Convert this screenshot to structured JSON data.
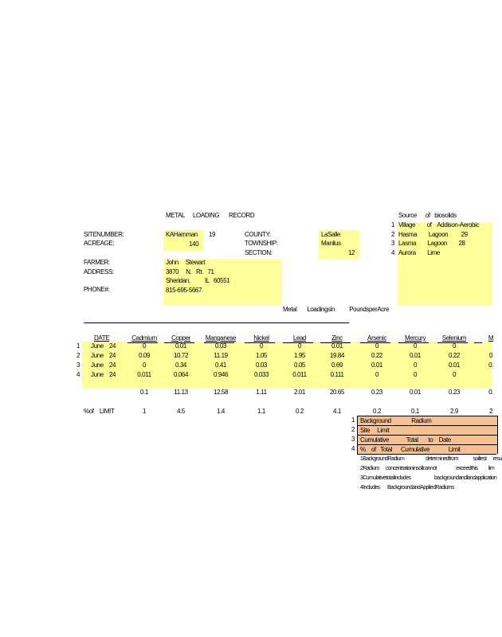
{
  "title": [
    "METAL",
    "LOADING",
    "RECORD"
  ],
  "site": {
    "labels": {
      "sitenumber": "SITENUMBER:",
      "acreage": "ACREAGE:",
      "county": "COUNTY:",
      "township": "TOWNSHIP:",
      "section": "SECTION:",
      "farmer": "FARMER:",
      "address": "ADDRESS:",
      "phone": "PHONE#:"
    },
    "site_name": "KAHamman",
    "site_number": "19",
    "acreage": "140",
    "county": "LaSalle",
    "township": "Manlius",
    "section": "12",
    "farmer": "John     Stewart",
    "address1": "3870     N.   Rt.   71",
    "address2": "Sheridan,          IL   60551",
    "phone": "815-695-5667"
  },
  "sources": {
    "title": "Source      of   biosolids",
    "items": [
      {
        "n": "1",
        "text": "Village        of    Addison-Aerobic"
      },
      {
        "n": "2",
        "text": "Hasma        Lagoon         29"
      },
      {
        "n": "3",
        "text": "Lasma        Lagoon        28"
      },
      {
        "n": "4",
        "text": "Aurora        Lime"
      }
    ]
  },
  "units_caption": "Metal       Loadingsin          PoundsperAcre",
  "table": {
    "date_header": "DATE",
    "columns": [
      "Cadmium",
      "Copper",
      "Manganese",
      "Nickel",
      "Lead",
      "Zinc",
      "Arsenic",
      "Mercury",
      "Selenium",
      "M"
    ],
    "rows": [
      {
        "n": "1",
        "month": "June",
        "day": "24",
        "values": [
          "0",
          "0.01",
          "0.03",
          "0",
          "0",
          "0.01",
          "0",
          "0",
          "0",
          ""
        ]
      },
      {
        "n": "2",
        "month": "June",
        "day": "24",
        "values": [
          "0.09",
          "10.72",
          "11.19",
          "1.05",
          "1.95",
          "19.84",
          "0.22",
          "0.01",
          "0.22",
          "0"
        ]
      },
      {
        "n": "3",
        "month": "June",
        "day": "24",
        "values": [
          "0",
          "0.34",
          "0.41",
          "0.03",
          "0.05",
          "0.69",
          "0.01",
          "0",
          "0.01",
          "0."
        ]
      },
      {
        "n": "4",
        "month": "June",
        "day": "24",
        "values": [
          "0.011",
          "0.064",
          "0.946",
          "0.033",
          "0.011",
          "0.111",
          "0",
          "0",
          "0",
          ""
        ]
      }
    ],
    "totals": [
      "0.1",
      "11.13",
      "12.58",
      "1.11",
      "2.01",
      "20.65",
      "0.23",
      "0.01",
      "0.23",
      "0."
    ],
    "limit_label": "%of    LIMIT",
    "limits": [
      "1",
      "4.5",
      "1.4",
      "1.1",
      "0.2",
      "4.1",
      "0.2",
      "0.1",
      "2.9",
      "2"
    ]
  },
  "legend": [
    {
      "n": "1",
      "text": "Background              Radium"
    },
    {
      "n": "2",
      "text": "Site     Limit"
    },
    {
      "n": "3",
      "text": "Cumulative            Total       to    Date"
    },
    {
      "n": "4",
      "text": "%    of   Total      Cumulative             Limit"
    }
  ],
  "footnotes": [
    "1BackgroundRadium                    determinedfrom              soiltest      resu",
    "2Radium      concentrationinsoilcannot                  exceedthis          lim",
    "3Cumulativetotalincludes                      backgroundandlandapplication",
    "4Includes       BackgroundandAppliedRadiums"
  ],
  "colors": {
    "highlight": "#ffff99",
    "legend_fill": "#f9c08f"
  }
}
